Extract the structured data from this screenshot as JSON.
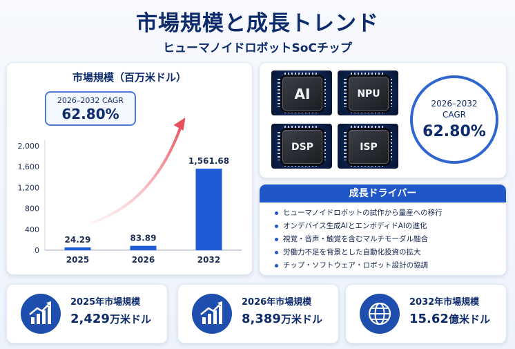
{
  "header": {
    "title": "市場規模と成長トレンド",
    "subtitle": "ヒューマノイドロボットSoCチップ"
  },
  "chart_data": {
    "type": "bar",
    "title": "市場規模（百万米ドル）",
    "categories": [
      "2025",
      "2026",
      "2032"
    ],
    "values": [
      24.29,
      83.89,
      1561.68
    ],
    "value_labels": [
      "24.29",
      "83.89",
      "1,561.68"
    ],
    "ylim": [
      0,
      2000
    ],
    "yticks": [
      0,
      400,
      800,
      1200,
      1600,
      2000
    ],
    "ytick_labels": [
      "0",
      "400",
      "800",
      "1,200",
      "1,600",
      "2,000"
    ],
    "bar_color": "#1f5bd6",
    "trend_arrow": "growth-arrow",
    "xlabel": "",
    "ylabel": ""
  },
  "cagr_box": {
    "label": "2026–2032 CAGR",
    "value": "62.80%"
  },
  "chips": [
    "AI",
    "NPU",
    "DSP",
    "ISP"
  ],
  "cagr_circle": {
    "period": "2026–2032",
    "label": "CAGR",
    "value": "62.80%"
  },
  "drivers": {
    "title": "成長ドライバー",
    "items": [
      "ヒューマノイドロボットの試作から量産への移行",
      "オンデバイス生成AIとエンボディドAIの進化",
      "視覚・音声・触覚を含むマルチモーダル融合",
      "労働力不足を背景とした自動化投資の拡大",
      "チップ・ソフトウェア・ロボット設計の協調"
    ]
  },
  "stats": [
    {
      "label": "2025年市場規模",
      "value": "2,429",
      "unit": "万米ドル",
      "icon": "bar-chart-growth-icon"
    },
    {
      "label": "2026年市場規模",
      "value": "8,389",
      "unit": "万米ドル",
      "icon": "bar-chart-growth-icon"
    },
    {
      "label": "2032年市場規模",
      "value": "15.62",
      "unit": "億米ドル",
      "icon": "globe-icon"
    }
  ],
  "colors": {
    "primary": "#1f56c8",
    "navy": "#0d2a6b",
    "arrow": "#e8505b"
  }
}
